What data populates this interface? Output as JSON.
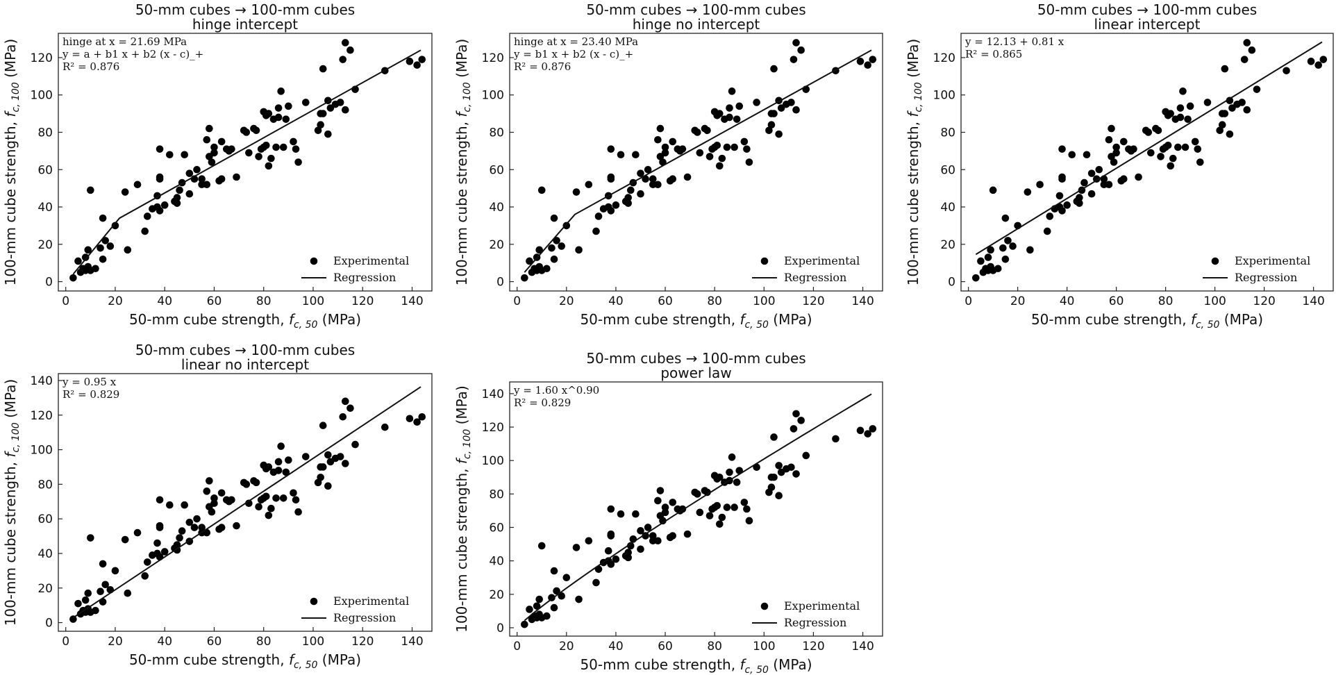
{
  "colors": {
    "marker": "#000000",
    "line": "#111111",
    "axes": "#222222",
    "background": "#ffffff"
  },
  "shared": {
    "xlabel": "50-mm cube strength, f_{c,50} (MPa)",
    "ylabel": "100-mm cube strength, f_{c,100} (MPa)",
    "xlabel_prefix": "50-mm cube strength, ",
    "xlabel_var": "f",
    "xlabel_sub": "c, 50",
    "xlabel_suffix": " (MPa)",
    "ylabel_prefix": "100-mm cube strength, ",
    "ylabel_var": "f",
    "ylabel_sub": "c, 100",
    "ylabel_suffix": " (MPa)",
    "legend": {
      "experimental": "Experimental",
      "regression": "Regression"
    },
    "experimental_points": {
      "x": [
        3,
        5,
        6,
        7,
        8,
        8,
        9,
        9,
        10,
        10,
        12,
        14,
        15,
        15,
        16,
        18,
        20,
        24,
        25,
        29,
        32,
        33,
        35,
        37,
        37,
        38,
        38,
        38,
        38,
        40,
        42,
        44,
        45,
        45,
        46,
        47,
        48,
        50,
        50,
        52,
        53,
        55,
        55,
        57,
        57,
        58,
        58,
        59,
        60,
        60,
        62,
        63,
        63,
        65,
        66,
        67,
        69,
        72,
        73,
        74,
        76,
        77,
        78,
        79,
        80,
        80,
        81,
        81,
        82,
        82,
        83,
        84,
        85,
        86,
        86,
        87,
        88,
        89,
        90,
        92,
        93,
        94,
        97,
        102,
        103,
        103,
        104,
        104,
        106,
        106,
        107,
        109,
        111,
        112,
        113,
        113,
        115,
        117,
        129,
        139,
        142,
        144
      ],
      "y": [
        2,
        11,
        5,
        7,
        6,
        13,
        17,
        8,
        6,
        49,
        7,
        18,
        34,
        12,
        22,
        19,
        30,
        48,
        17,
        52,
        27,
        35,
        39,
        40,
        46,
        55,
        56,
        71,
        38,
        41,
        68,
        43,
        45,
        42,
        49,
        53,
        68,
        47,
        58,
        55,
        60,
        52,
        55,
        52,
        76,
        82,
        67,
        64,
        69,
        72,
        54,
        55,
        75,
        71,
        70,
        71,
        56,
        81,
        80,
        69,
        82,
        81,
        67,
        71,
        91,
        72,
        73,
        89,
        62,
        90,
        66,
        87,
        72,
        88,
        93,
        102,
        72,
        87,
        94,
        75,
        71,
        64,
        96,
        81,
        84,
        90,
        90,
        114,
        79,
        97,
        93,
        95,
        96,
        119,
        92,
        128,
        124,
        103,
        113,
        118,
        116,
        119
      ]
    }
  },
  "chart_data": [
    {
      "type": "scatter",
      "title": "50-mm cubes → 100-mm cubes",
      "subtitle": "hinge intercept",
      "annotation": [
        "hinge at x = 21.69 MPa",
        "y = a + b1 x + b2 (x - c)_+",
        "R² = 0.876"
      ],
      "regression": {
        "model": "hinge",
        "line_x": [
          3,
          21.69,
          143.5
        ],
        "line_y": [
          4,
          34,
          124
        ]
      },
      "xlim": [
        -3,
        148
      ],
      "ylim": [
        -5,
        133
      ],
      "xticks": [
        0,
        20,
        40,
        60,
        80,
        100,
        120,
        140
      ],
      "yticks": [
        0,
        20,
        40,
        60,
        80,
        100,
        120
      ],
      "legend_position": "lower-right"
    },
    {
      "type": "scatter",
      "title": "50-mm cubes → 100-mm cubes",
      "subtitle": "hinge no intercept",
      "annotation": [
        "hinge at x = 23.40 MPa",
        "y = b1 x + b2 (x - c)_+",
        "R² = 0.876"
      ],
      "regression": {
        "model": "hinge",
        "line_x": [
          3,
          23.4,
          143.5
        ],
        "line_y": [
          5,
          36,
          124
        ]
      },
      "xlim": [
        -3,
        148
      ],
      "ylim": [
        -5,
        133
      ],
      "xticks": [
        0,
        20,
        40,
        60,
        80,
        100,
        120,
        140
      ],
      "yticks": [
        0,
        20,
        40,
        60,
        80,
        100,
        120
      ],
      "legend_position": "lower-right"
    },
    {
      "type": "scatter",
      "title": "50-mm cubes → 100-mm cubes",
      "subtitle": "linear intercept",
      "annotation": [
        "y = 12.13 + 0.81 x",
        "R² = 0.865"
      ],
      "regression": {
        "model": "linear",
        "intercept": 12.13,
        "slope": 0.81,
        "x_range": [
          3,
          143.5
        ]
      },
      "xlim": [
        -3,
        148
      ],
      "ylim": [
        -5,
        133
      ],
      "xticks": [
        0,
        20,
        40,
        60,
        80,
        100,
        120,
        140
      ],
      "yticks": [
        0,
        20,
        40,
        60,
        80,
        100,
        120
      ],
      "legend_position": "lower-right"
    },
    {
      "type": "scatter",
      "title": "50-mm cubes → 100-mm cubes",
      "subtitle": "linear no intercept",
      "annotation": [
        "y = 0.95 x",
        "R² = 0.829"
      ],
      "regression": {
        "model": "linear",
        "intercept": 0,
        "slope": 0.95,
        "x_range": [
          3,
          143.5
        ]
      },
      "xlim": [
        -3,
        148
      ],
      "ylim": [
        -5,
        144
      ],
      "xticks": [
        0,
        20,
        40,
        60,
        80,
        100,
        120,
        140
      ],
      "yticks": [
        0,
        20,
        40,
        60,
        80,
        100,
        120,
        140
      ],
      "legend_position": "lower-right"
    },
    {
      "type": "scatter",
      "title": "50-mm cubes → 100-mm cubes",
      "subtitle": "power law",
      "annotation": [
        "y = 1.60 x^0.90",
        "R² = 0.829"
      ],
      "regression": {
        "model": "power",
        "coef": 1.6,
        "exponent": 0.9,
        "x_range": [
          3,
          143.5
        ]
      },
      "xlim": [
        -3,
        148
      ],
      "ylim": [
        -5,
        147
      ],
      "xticks": [
        0,
        20,
        40,
        60,
        80,
        100,
        120,
        140
      ],
      "yticks": [
        0,
        20,
        40,
        60,
        80,
        100,
        120,
        140
      ],
      "legend_position": "lower-right"
    }
  ]
}
